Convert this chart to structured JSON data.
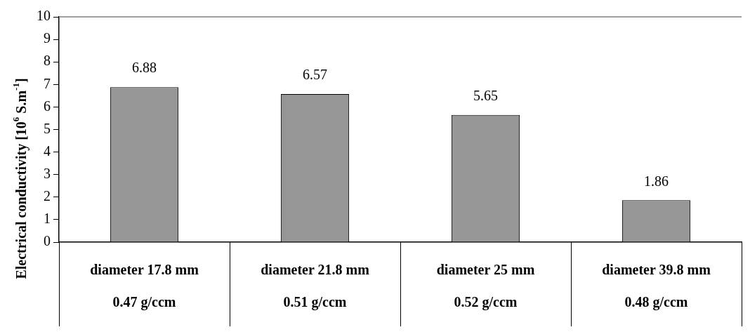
{
  "chart_data": {
    "type": "bar",
    "ylabel": "Electrical conductivity [10$^{6}$ S.m$^{-1}$]",
    "categories": [
      "diameter 17.8 mm\n0.47 g/ccm",
      "diameter 21.8 mm\n0.51 g/ccm",
      "diameter 25 mm\n0.52 g/ccm",
      "diameter 39.8 mm\n0.48 g/ccm"
    ],
    "values": [
      6.88,
      6.57,
      5.65,
      1.86
    ],
    "color": "#969696",
    "ylim": [
      0,
      10
    ],
    "yticks": [
      0,
      1,
      2,
      3,
      4,
      5,
      6,
      7,
      8,
      9,
      10
    ],
    "grid": false,
    "legend": false,
    "data_labels": true
  }
}
